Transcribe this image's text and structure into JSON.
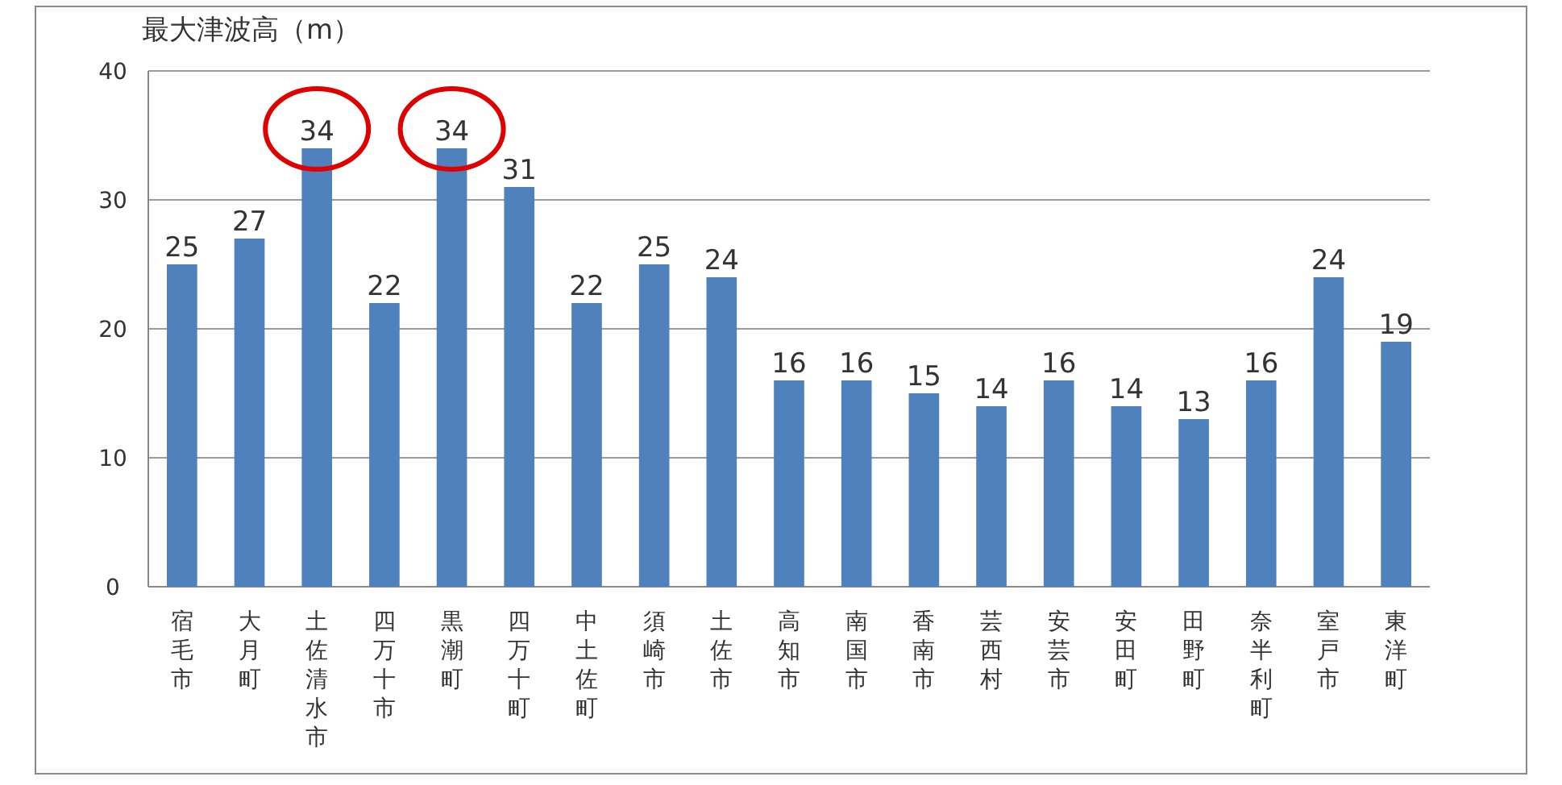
{
  "chart_data": {
    "type": "bar",
    "ylabel": "最大津波高（m）",
    "categories": [
      "宿毛市",
      "大月町",
      "土佐清水市",
      "四万十市",
      "黒潮町",
      "四万十町",
      "中土佐町",
      "須崎市",
      "土佐市",
      "高知市",
      "南国市",
      "香南市",
      "芸西村",
      "安芸市",
      "安田町",
      "田野町",
      "奈半利町",
      "室戸市",
      "東洋町"
    ],
    "values": [
      25,
      27,
      34,
      22,
      34,
      31,
      22,
      25,
      24,
      16,
      16,
      15,
      14,
      16,
      14,
      13,
      16,
      24,
      19
    ],
    "color": "#4f81bd",
    "ylim": [
      0,
      40
    ],
    "yticks": [
      0,
      10,
      20,
      30,
      40
    ],
    "grid": "y",
    "data_labels": true
  }
}
